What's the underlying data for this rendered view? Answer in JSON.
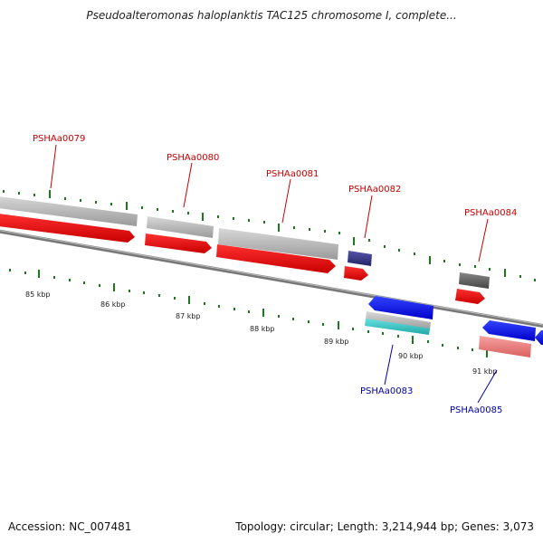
{
  "title": "Pseudoalteromonas haloplanktis TAC125 chromosome I, complete...",
  "footer": {
    "accession_label": "Accession:",
    "accession": "NC_007481",
    "topology_label": "Topology:",
    "topology": "circular",
    "length_label": "Length:",
    "length": "3,214,944 bp",
    "genes_label": "Genes:",
    "genes": "3,073"
  },
  "kbp_ticks": [
    "85 kbp",
    "86 kbp",
    "87 kbp",
    "88 kbp",
    "89 kbp",
    "90 kbp",
    "91 kbp"
  ],
  "gene_labels": {
    "PSHAa0079": "PSHAa0079",
    "PSHAa0080": "PSHAa0080",
    "PSHAa0081": "PSHAa0081",
    "PSHAa0082": "PSHAa0082",
    "PSHAa0083": "PSHAa0083",
    "PSHAa0084": "PSHAa0084",
    "PSHAa0085": "PSHAa0085"
  },
  "colors": {
    "forward_label": "#cc0000",
    "reverse_label": "#0000aa",
    "backbone": "#777777",
    "tick": "#1a7a1a",
    "cds_forward": "#ff0000",
    "cds_reverse": "#0000ff",
    "gene_bar": "#bbbbbb",
    "dark_gene": "#555555",
    "purple_gene": "#333388",
    "cyan_gene": "#33cccc",
    "pink_gene": "#f08080"
  }
}
